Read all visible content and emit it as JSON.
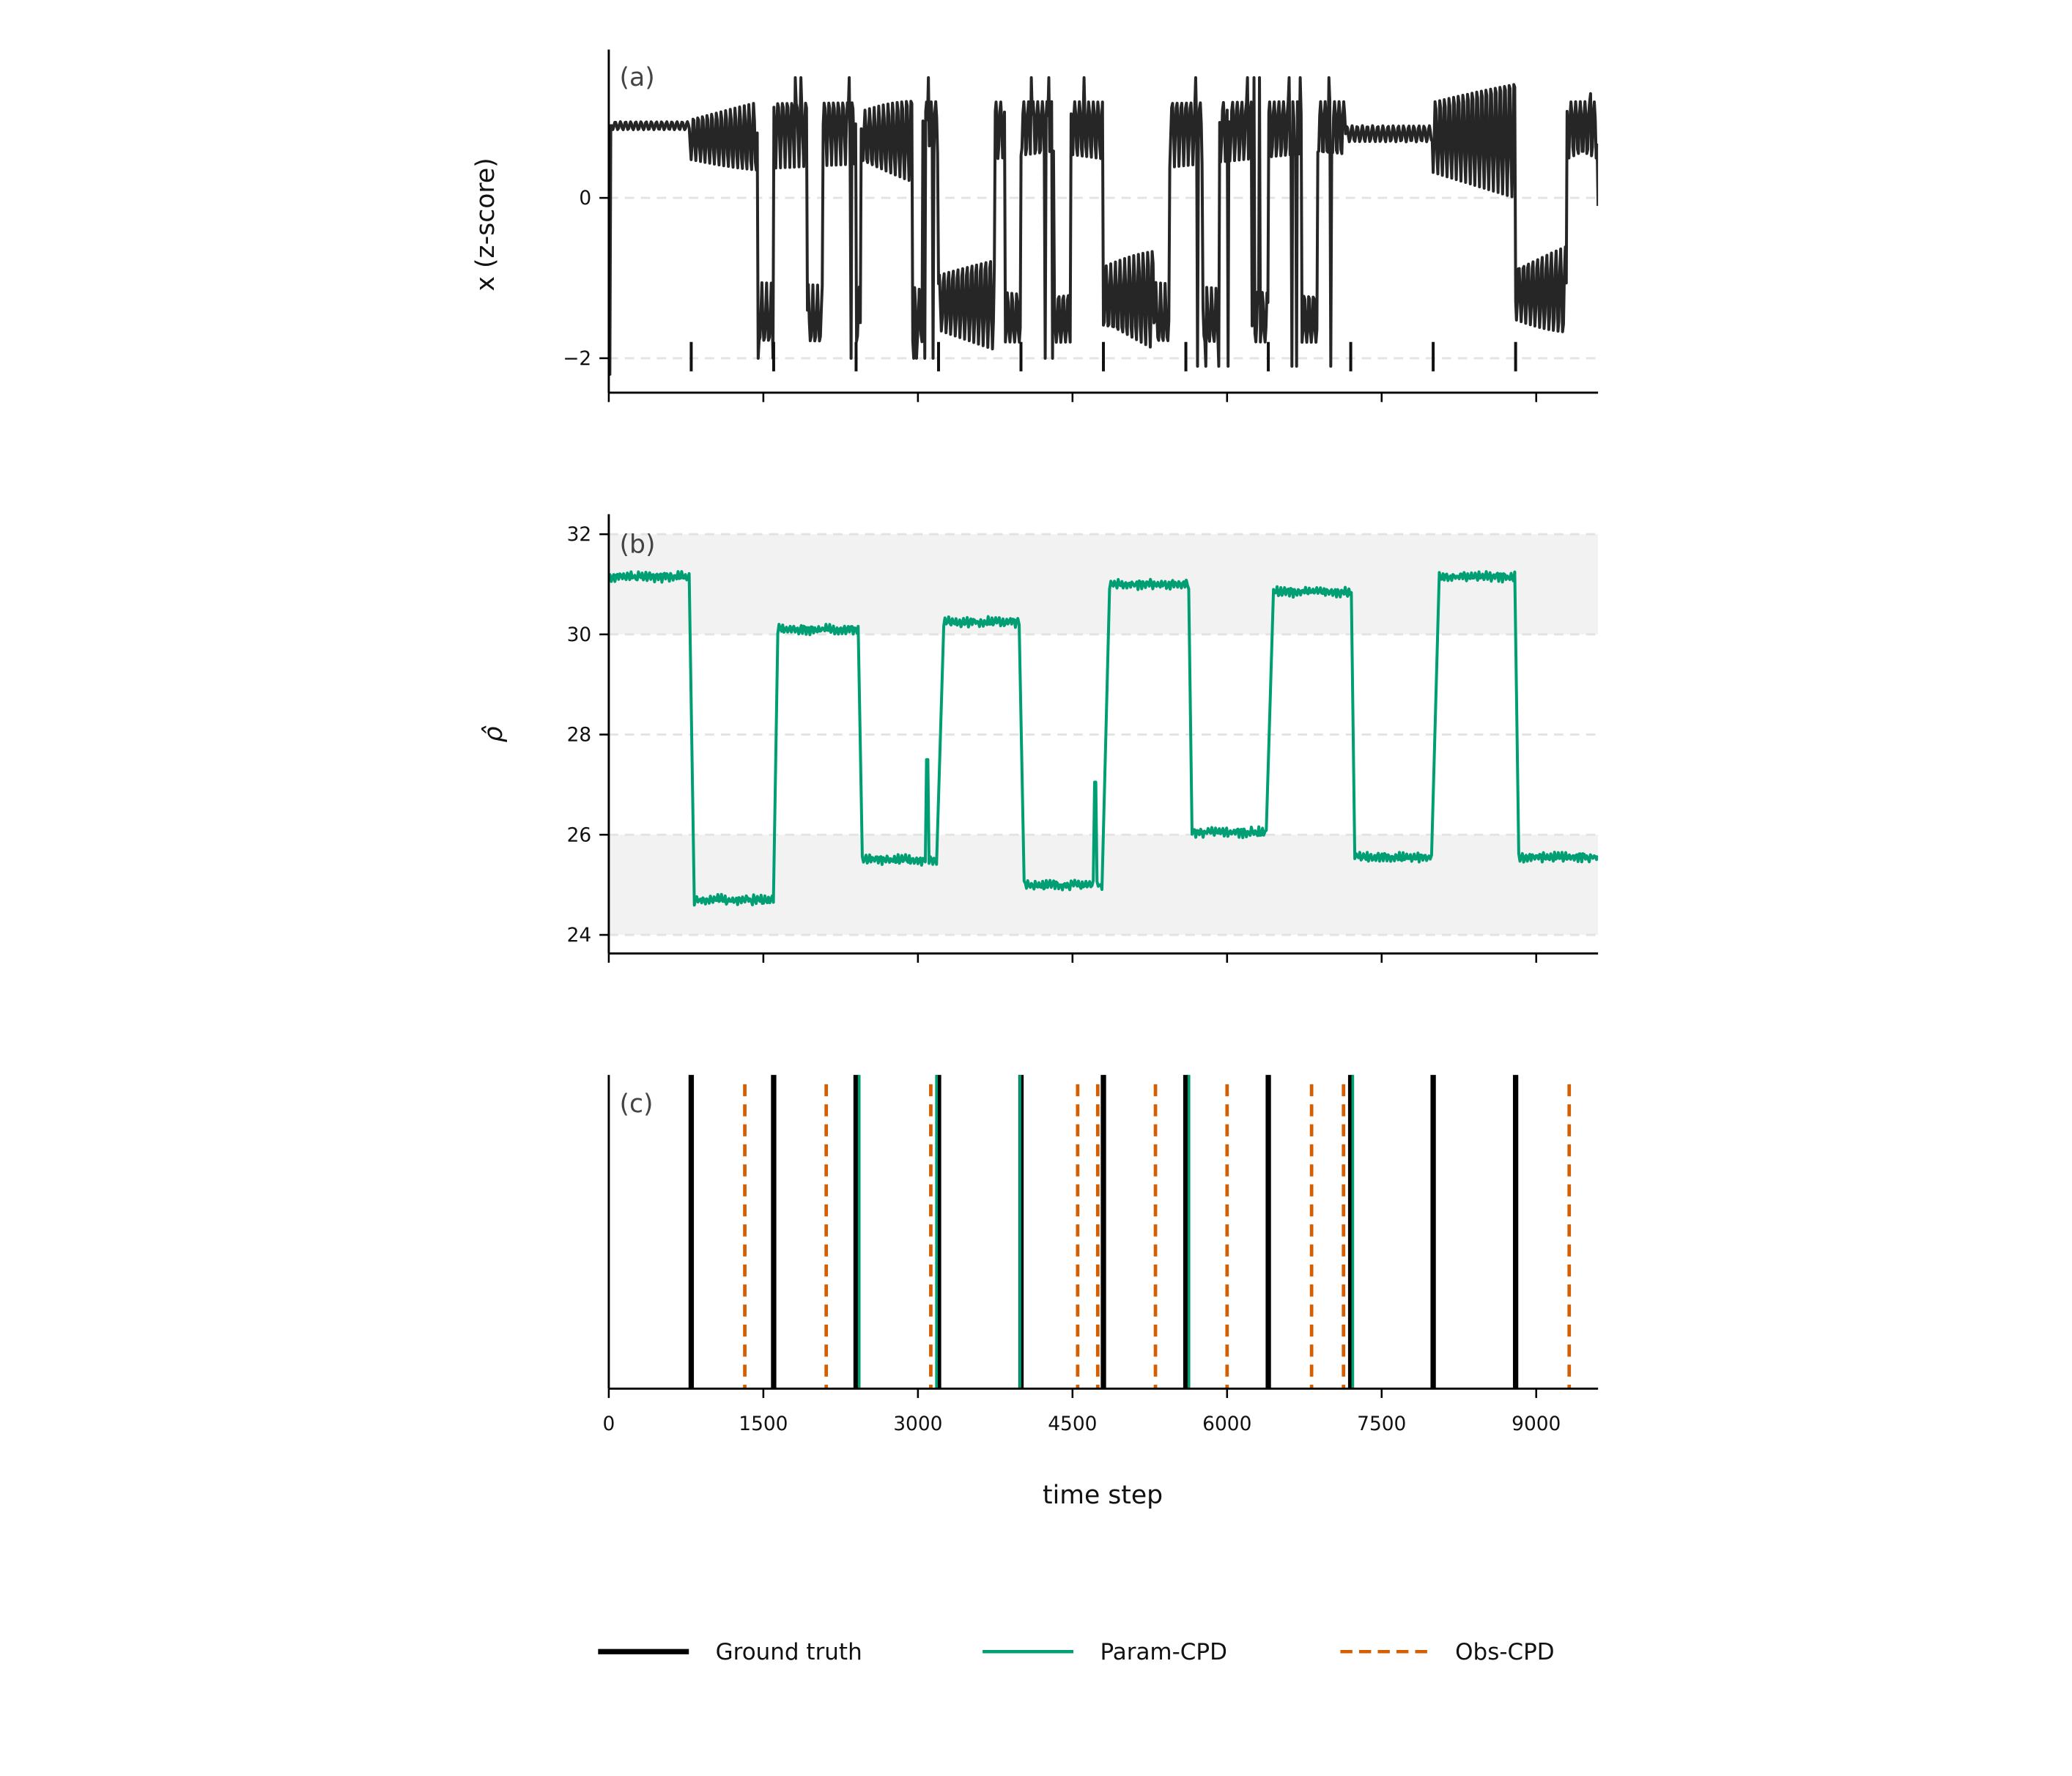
{
  "chart_data": [
    {
      "panel": "(a)",
      "type": "line",
      "ylabel": "x (z-score)",
      "xlim": [
        0,
        9600
      ],
      "ylim": [
        -2.43,
        1.85
      ],
      "yticks": [
        0,
        -2
      ],
      "ytick_labels": [
        "0",
        "−2"
      ],
      "grid": "horizontal dashed at ticks",
      "line_color": "#262626",
      "ground_truth_marks": [
        800,
        1600,
        2400,
        3200,
        4000,
        4800,
        5600,
        6400,
        7200,
        8000,
        8800
      ],
      "regimes": [
        {
          "start": 0,
          "end": 40,
          "kind": "spike",
          "lo": -2.2,
          "hi": 0.9
        },
        {
          "start": 40,
          "end": 790,
          "kind": "steady",
          "lo": 0.85,
          "hi": 0.95
        },
        {
          "start": 790,
          "end": 1450,
          "kind": "oscillation",
          "lo": 0.3,
          "hi": 1.2
        },
        {
          "start": 1450,
          "end": 2450,
          "kind": "chaotic",
          "lo": -2.0,
          "hi": 1.5
        },
        {
          "start": 2450,
          "end": 2950,
          "kind": "oscillation",
          "lo": 0.2,
          "hi": 1.3
        },
        {
          "start": 2950,
          "end": 3200,
          "kind": "chaotic",
          "lo": -2.0,
          "hi": 1.5
        },
        {
          "start": 3200,
          "end": 3750,
          "kind": "oscillation",
          "lo": -1.9,
          "hi": -0.7
        },
        {
          "start": 3750,
          "end": 4800,
          "kind": "chaotic",
          "lo": -2.0,
          "hi": 1.5
        },
        {
          "start": 4800,
          "end": 5300,
          "kind": "oscillation",
          "lo": -1.9,
          "hi": -0.6
        },
        {
          "start": 5300,
          "end": 7150,
          "kind": "chaotic",
          "lo": -2.1,
          "hi": 1.5
        },
        {
          "start": 7150,
          "end": 8000,
          "kind": "steady",
          "lo": 0.7,
          "hi": 0.9
        },
        {
          "start": 8000,
          "end": 8800,
          "kind": "oscillation",
          "lo": 0.0,
          "hi": 1.55
        },
        {
          "start": 8800,
          "end": 9300,
          "kind": "oscillation",
          "lo": -1.75,
          "hi": -0.6
        },
        {
          "start": 9300,
          "end": 9600,
          "kind": "chaotic",
          "lo": -1.9,
          "hi": 1.3
        }
      ]
    },
    {
      "panel": "(b)",
      "type": "line",
      "ylabel": "ρ̂",
      "xlim": [
        0,
        9600
      ],
      "ylim": [
        23.63,
        32.4
      ],
      "yticks": [
        32,
        30,
        28,
        26,
        24
      ],
      "ytick_labels": [
        "32",
        "30",
        "28",
        "26",
        "24"
      ],
      "shaded_bands": [
        [
          24,
          26
        ],
        [
          30,
          32
        ]
      ],
      "grid": "horizontal dashed at ticks",
      "line_color": "#009e73",
      "segments": [
        {
          "start": 0,
          "end": 790,
          "value": 31.15
        },
        {
          "start": 830,
          "end": 1600,
          "value": 24.7
        },
        {
          "start": 1640,
          "end": 2430,
          "value": 30.1
        },
        {
          "start": 2460,
          "end": 3180,
          "value": 25.5
        },
        {
          "start": 3250,
          "end": 3990,
          "value": 30.25
        },
        {
          "start": 4030,
          "end": 4790,
          "value": 25.0
        },
        {
          "start": 4860,
          "end": 5630,
          "value": 31.0
        },
        {
          "start": 5660,
          "end": 6390,
          "value": 26.05
        },
        {
          "start": 6450,
          "end": 7210,
          "value": 30.85
        },
        {
          "start": 7240,
          "end": 7990,
          "value": 25.55
        },
        {
          "start": 8060,
          "end": 8800,
          "value": 31.15
        },
        {
          "start": 8830,
          "end": 9600,
          "value": 25.55
        }
      ],
      "spikes": [
        {
          "x": 3090,
          "value": 27.5
        },
        {
          "x": 4720,
          "value": 27.05
        }
      ]
    },
    {
      "panel": "(c)",
      "type": "event_lines",
      "xlabel": "time step",
      "xlim": [
        0,
        9600
      ],
      "xticks": [
        0,
        1500,
        3000,
        4500,
        6000,
        7500,
        9000
      ],
      "xtick_labels": [
        "0",
        "1500",
        "3000",
        "4500",
        "6000",
        "7500",
        "9000"
      ],
      "series": [
        {
          "name": "Ground truth",
          "color": "#000000",
          "style": "solid-thick",
          "values": [
            800,
            1600,
            2400,
            3200,
            4000,
            4800,
            5600,
            6400,
            7200,
            8000,
            8800
          ]
        },
        {
          "name": "Param-CPD",
          "color": "#009e73",
          "style": "solid",
          "values": [
            2430,
            3180,
            3990,
            5630,
            7220
          ]
        },
        {
          "name": "Obs-CPD",
          "color": "#d55e00",
          "style": "dashed",
          "values": [
            1320,
            2110,
            3125,
            4550,
            4745,
            5305,
            6000,
            6820,
            7130,
            9320
          ]
        }
      ]
    }
  ],
  "legend": {
    "placement": "bottom",
    "items": [
      "Ground truth",
      "Param-CPD",
      "Obs-CPD"
    ]
  }
}
